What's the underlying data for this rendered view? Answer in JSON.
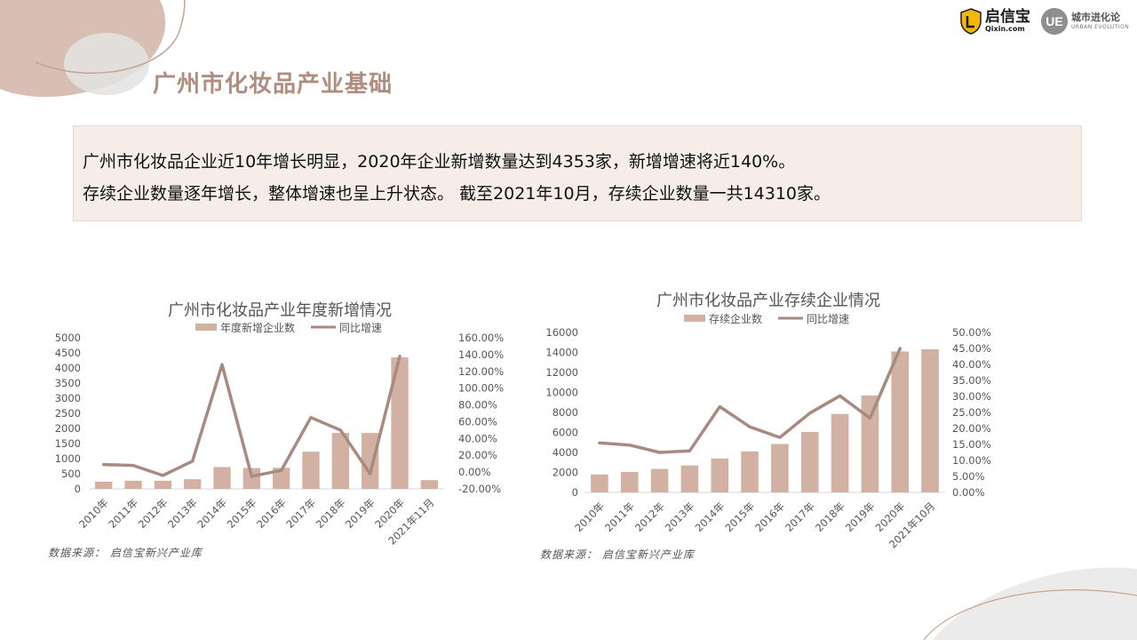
{
  "page_title": "广州市化妆品产业基础",
  "brands": {
    "qixin_name": "启信宝",
    "qixin_domain": "Qixin.com",
    "ue_mark": "UE",
    "ue_name": "城市进化论",
    "ue_sub": "URBAN EVOLUTION"
  },
  "summary": {
    "line1": "广州市化妆品企业近10年增长明显，2020年企业新增数量达到4353家，新增增速将近140%。",
    "line2": "存续企业数量逐年增长，整体增速也呈上升状态。  截至2021年10月，存续企业数量一共14310家。"
  },
  "colors": {
    "accent": "#b08e7f",
    "bar": "#d3b1a2",
    "line": "#a88a80",
    "panel": "#f6ede8"
  },
  "chart_data": [
    {
      "type": "bar",
      "title": "广州市化妆品产业年度新增情况",
      "categories": [
        "2010年",
        "2011年",
        "2012年",
        "2013年",
        "2014年",
        "2015年",
        "2016年",
        "2017年",
        "2018年",
        "2019年",
        "2020年",
        "2021年11月"
      ],
      "series": [
        {
          "name": "年度新增企业数",
          "kind": "bar",
          "axis": "left",
          "values": [
            240,
            270,
            270,
            320,
            720,
            690,
            700,
            1230,
            1850,
            1850,
            4353,
            290
          ]
        },
        {
          "name": "同比增速",
          "kind": "line",
          "axis": "right",
          "values": [
            9,
            8,
            -4,
            13,
            128,
            -5,
            2,
            65,
            50,
            -2,
            138,
            null
          ]
        }
      ],
      "y_left": {
        "min": 0,
        "max": 5000,
        "step": 500,
        "ticks": [
          "0",
          "500",
          "1000",
          "1500",
          "2000",
          "2500",
          "3000",
          "3500",
          "4000",
          "4500",
          "5000"
        ]
      },
      "y_right": {
        "min": -20,
        "max": 160,
        "step": 20,
        "ticks": [
          "-20.00%",
          "0.00%",
          "20.00%",
          "40.00%",
          "60.00%",
          "80.00%",
          "100.00%",
          "120.00%",
          "140.00%",
          "160.00%"
        ]
      },
      "legend": "top",
      "grid": false,
      "source": "数据来源：  启信宝新兴产业库"
    },
    {
      "type": "bar",
      "title": "广州市化妆品产业存续企业情况",
      "categories": [
        "2010年",
        "2011年",
        "2012年",
        "2013年",
        "2014年",
        "2015年",
        "2016年",
        "2017年",
        "2018年",
        "2019年",
        "2020年",
        "2021年10月"
      ],
      "series": [
        {
          "name": "存续企业数",
          "kind": "bar",
          "axis": "left",
          "values": [
            1800,
            2050,
            2350,
            2700,
            3400,
            4100,
            4850,
            6050,
            7850,
            9700,
            14100,
            14310
          ]
        },
        {
          "name": "同比增速",
          "kind": "line",
          "axis": "right",
          "values": [
            15.5,
            14.8,
            12.5,
            13,
            26.8,
            20.5,
            17.2,
            24.8,
            30.2,
            23.2,
            45,
            null
          ]
        }
      ],
      "y_left": {
        "min": 0,
        "max": 16000,
        "step": 2000,
        "ticks": [
          "0",
          "2000",
          "4000",
          "6000",
          "8000",
          "10000",
          "12000",
          "14000",
          "16000"
        ]
      },
      "y_right": {
        "min": 0,
        "max": 50,
        "step": 5,
        "ticks": [
          "0.00%",
          "5.00%",
          "10.00%",
          "15.00%",
          "20.00%",
          "25.00%",
          "30.00%",
          "35.00%",
          "40.00%",
          "45.00%",
          "50.00%"
        ]
      },
      "legend": "top",
      "grid": false,
      "source": "数据来源：  启信宝新兴产业库"
    }
  ]
}
